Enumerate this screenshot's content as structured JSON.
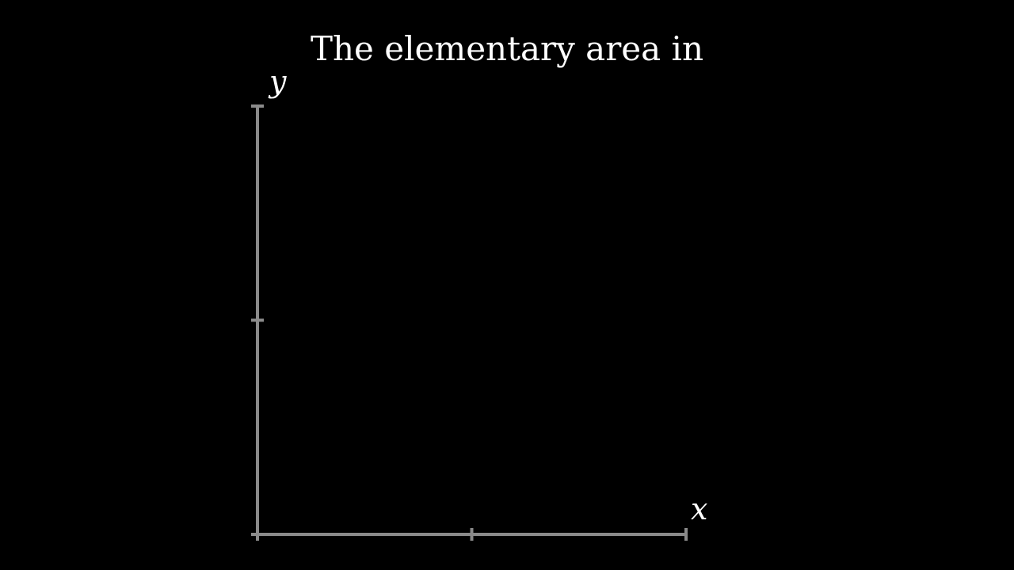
{
  "title": "The elementary area in",
  "axes": {
    "x_label": "x",
    "y_label": "y",
    "x_ticks": 3,
    "y_ticks": 3,
    "color": "#8a8a8a"
  },
  "colors": {
    "background": "#000000",
    "text": "#ffffff"
  }
}
